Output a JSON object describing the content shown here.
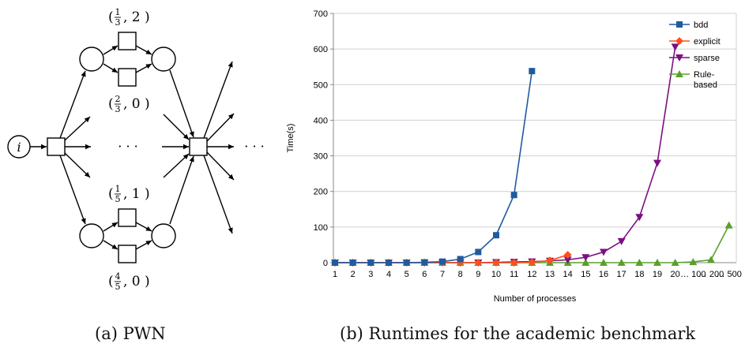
{
  "figure_a": {
    "caption": "(a) PWN",
    "node_i_label": "i",
    "labels": [
      {
        "id": "top1",
        "num": "1",
        "den": "3",
        "rest": ", 2"
      },
      {
        "id": "top2",
        "num": "2",
        "den": "3",
        "rest": ", 0"
      },
      {
        "id": "bot1",
        "num": "1",
        "den": "5",
        "rest": ", 1"
      },
      {
        "id": "bot2",
        "num": "4",
        "den": "5",
        "rest": ", 0"
      }
    ],
    "ellipsis": "· · ·"
  },
  "figure_b": {
    "caption": "(b) Runtimes for the academic benchmark",
    "colors": {
      "bdd": "#1f5b9e",
      "explicit": "#ff4f1a",
      "sparse": "#7b0f82",
      "rule": "#5aa02c",
      "axis": "#888888",
      "grid": "#d0d0d0"
    }
  },
  "chart_data": {
    "type": "line",
    "xlabel": "Number of processes",
    "ylabel": "Time(s)",
    "categories": [
      "1",
      "2",
      "3",
      "4",
      "5",
      "6",
      "7",
      "8",
      "9",
      "10",
      "11",
      "12",
      "13",
      "14",
      "15",
      "16",
      "17",
      "18",
      "19",
      "20",
      "… 100",
      "… 200",
      "… 500"
    ],
    "ylim": [
      0,
      700
    ],
    "yticks": [
      0,
      100,
      200,
      300,
      400,
      500,
      600,
      700
    ],
    "grid": "horizontal",
    "legend_position": "top-right",
    "series": [
      {
        "name": "bdd",
        "key": "bdd",
        "marker": "square",
        "values": [
          0,
          0,
          0,
          0,
          0,
          1,
          3,
          10,
          30,
          77,
          190,
          538,
          null,
          null,
          null,
          null,
          null,
          null,
          null,
          null,
          null,
          null,
          null
        ]
      },
      {
        "name": "explicit",
        "key": "explicit",
        "marker": "diamond",
        "values": [
          0,
          0,
          0,
          0,
          0,
          0,
          0,
          0,
          0,
          0,
          0,
          1,
          6,
          22,
          null,
          null,
          null,
          null,
          null,
          null,
          null,
          null,
          null
        ]
      },
      {
        "name": "sparse",
        "key": "sparse",
        "marker": "triangle-down",
        "values": [
          0,
          0,
          0,
          0,
          0,
          0,
          0,
          0,
          0,
          1,
          2,
          3,
          5,
          8,
          15,
          30,
          60,
          128,
          280,
          606,
          null,
          null,
          null
        ]
      },
      {
        "name_lines": [
          "Rule-",
          "based"
        ],
        "key": "rule",
        "marker": "triangle-up",
        "values": [
          0,
          0,
          0,
          0,
          0,
          0,
          0,
          0,
          0,
          0,
          0,
          0,
          0,
          0,
          0,
          0,
          0,
          0,
          0,
          0,
          2,
          8,
          105
        ]
      }
    ]
  }
}
